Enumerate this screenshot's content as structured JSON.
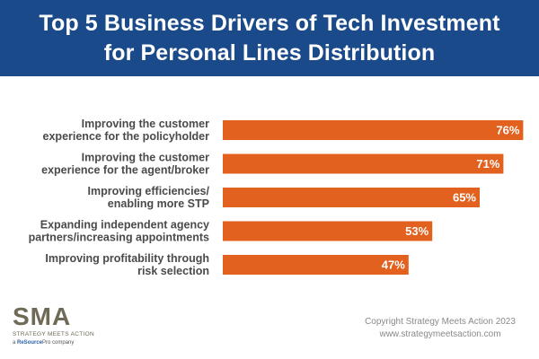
{
  "header": {
    "title_line1": "Top 5 Business Drivers of Tech Investment",
    "title_line2": "for Personal Lines Distribution"
  },
  "colors": {
    "header_bg": "#1a4a8a",
    "bar": "#e3611e",
    "label_text": "#4a4a4a"
  },
  "chart_data": {
    "type": "bar",
    "orientation": "horizontal",
    "title": "Top 5 Business Drivers of Tech Investment for Personal Lines Distribution",
    "categories": [
      [
        "Improving the customer",
        "experience for the policyholder"
      ],
      [
        "Improving the customer",
        "experience for the agent/broker"
      ],
      [
        "Improving efficiencies/",
        "enabling more STP"
      ],
      [
        "Expanding independent agency",
        "partners/increasing appointments"
      ],
      [
        "Improving profitability through",
        "risk selection"
      ]
    ],
    "values": [
      76,
      71,
      65,
      53,
      47
    ],
    "value_labels": [
      "76%",
      "71%",
      "65%",
      "53%",
      "47%"
    ],
    "unit": "%",
    "xlim": [
      0,
      100
    ],
    "grid": false,
    "legend": "none"
  },
  "footer": {
    "logo_mark": "SMA",
    "logo_name": "STRATEGY MEETS ACTION",
    "logo_sub_prefix": "a ",
    "logo_sub_brand": "ReSource",
    "logo_sub_suffix": "Pro company",
    "copyright": "Copyright Strategy Meets Action 2023",
    "website": "www.strategymeetsaction.com"
  }
}
